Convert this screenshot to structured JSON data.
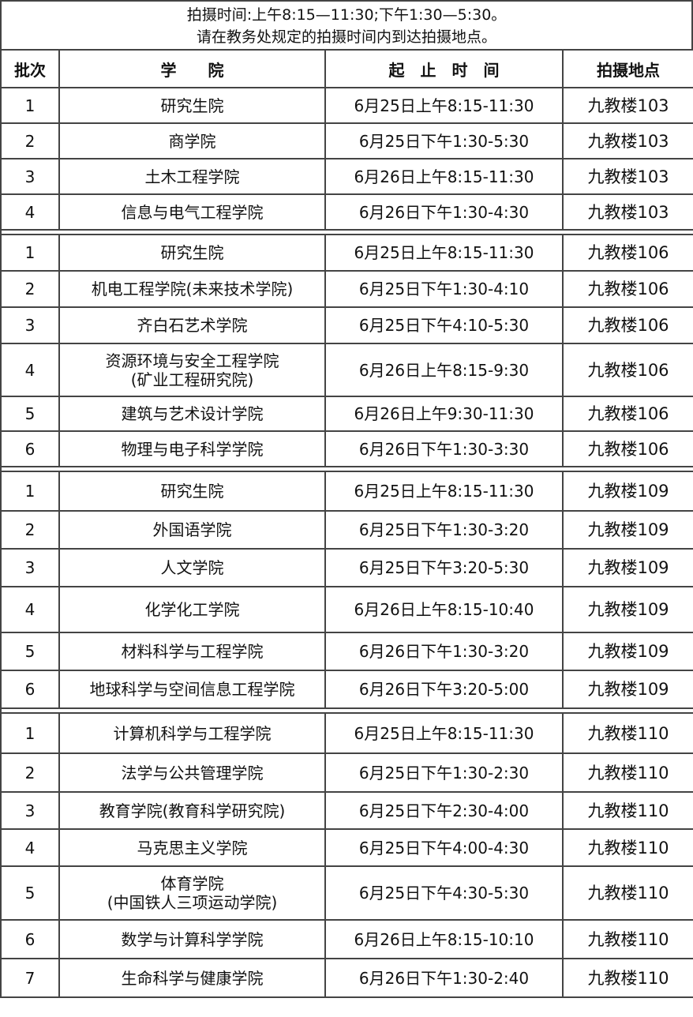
{
  "notice": {
    "line1": "拍摄时间:上午8:15—11:30;下午1:30—5:30。",
    "line2": "请在教务处规定的拍摄时间内到达拍摄地点。"
  },
  "headers": [
    "批次",
    "学　　院",
    "起　止　时　间",
    "拍摄地点"
  ],
  "groups": [
    {
      "rows": [
        [
          "1",
          "研究生院",
          "6月25日上午8:15-11:30",
          "九教楼103"
        ],
        [
          "2",
          "商学院",
          "6月25日下午1:30-5:30",
          "九教楼103"
        ],
        [
          "3",
          "土木工程学院",
          "6月26日上午8:15-11:30",
          "九教楼103"
        ],
        [
          "4",
          "信息与电气工程学院",
          "6月26日下午1:30-4:30",
          "九教楼103"
        ]
      ]
    },
    {
      "rows": [
        [
          "1",
          "研究生院",
          "6月25日上午8:15-11:30",
          "九教楼106"
        ],
        [
          "2",
          "机电工程学院(未来技术学院)",
          "6月25日下午1:30-4:10",
          "九教楼106"
        ],
        [
          "3",
          "齐白石艺术学院",
          "6月25日下午4:10-5:30",
          "九教楼106"
        ],
        [
          "4",
          "资源环境与安全工程学院\n(矿业工程研究院)",
          "6月26日上午8:15-9:30",
          "九教楼106"
        ],
        [
          "5",
          "建筑与艺术设计学院",
          "6月26日上午9:30-11:30",
          "九教楼106"
        ],
        [
          "6",
          "物理与电子科学学院",
          "6月26日下午1:30-3:30",
          "九教楼106"
        ]
      ]
    },
    {
      "rows": [
        [
          "1",
          "研究生院",
          "6月25日上午8:15-11:30",
          "九教楼109"
        ],
        [
          "2",
          "外国语学院",
          "6月25日下午1:30-3:20",
          "九教楼109"
        ],
        [
          "3",
          "人文学院",
          "6月25日下午3:20-5:30",
          "九教楼109"
        ],
        [
          "4",
          "化学化工学院",
          "6月26日上午8:15-10:40",
          "九教楼109"
        ],
        [
          "5",
          "材料科学与工程学院",
          "6月26日下午1:30-3:20",
          "九教楼109"
        ],
        [
          "6",
          "地球科学与空间信息工程学院",
          "6月26日下午3:20-5:00",
          "九教楼109"
        ]
      ]
    },
    {
      "rows": [
        [
          "1",
          "计算机科学与工程学院",
          "6月25日上午8:15-11:30",
          "九教楼110"
        ],
        [
          "2",
          "法学与公共管理学院",
          "6月25日下午1:30-2:30",
          "九教楼110"
        ],
        [
          "3",
          "教育学院(教育科学研究院)",
          "6月25日下午2:30-4:00",
          "九教楼110"
        ],
        [
          "4",
          "马克思主义学院",
          "6月25日下午4:00-4:30",
          "九教楼110"
        ],
        [
          "5",
          "体育学院\n(中国铁人三项运动学院)",
          "6月25日下午4:30-5:30",
          "九教楼110"
        ],
        [
          "6",
          "数学与计算科学学院",
          "6月26日上午8:15-10:10",
          "九教楼110"
        ],
        [
          "7",
          "生命科学与健康学院",
          "6月26日下午1:30-2:40",
          "九教楼110"
        ]
      ]
    }
  ]
}
